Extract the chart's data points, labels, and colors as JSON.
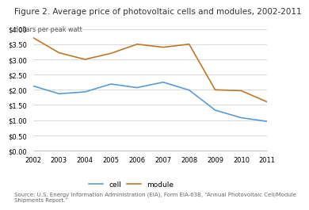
{
  "title": "Figure 2. Average price of photovoltaic cells and modules, 2002-2011",
  "ylabel": "dollars per peak watt",
  "years": [
    2002,
    2003,
    2004,
    2005,
    2006,
    2007,
    2008,
    2009,
    2010,
    2011
  ],
  "cell": [
    2.13,
    1.87,
    1.93,
    2.19,
    2.07,
    2.25,
    1.99,
    1.33,
    1.08,
    0.96
  ],
  "module": [
    3.72,
    3.22,
    3.0,
    3.2,
    3.5,
    3.4,
    3.5,
    2.0,
    1.97,
    1.6
  ],
  "cell_color": "#5b9bd5",
  "module_color": "#c07828",
  "ylim": [
    0.0,
    4.0
  ],
  "yticks": [
    0.0,
    0.5,
    1.0,
    1.5,
    2.0,
    2.5,
    3.0,
    3.5,
    4.0
  ],
  "source_text": "Source: U.S. Energy Information Administration (EIA), Form EIA-63B, “Annual Photovoltaic Cell/Module\nShipments Report.”",
  "title_fontsize": 7.5,
  "sublabel_fontsize": 5.8,
  "tick_fontsize": 6.0,
  "legend_fontsize": 6.5,
  "source_fontsize": 5.0,
  "bg_color": "#ffffff",
  "grid_color": "#cccccc"
}
